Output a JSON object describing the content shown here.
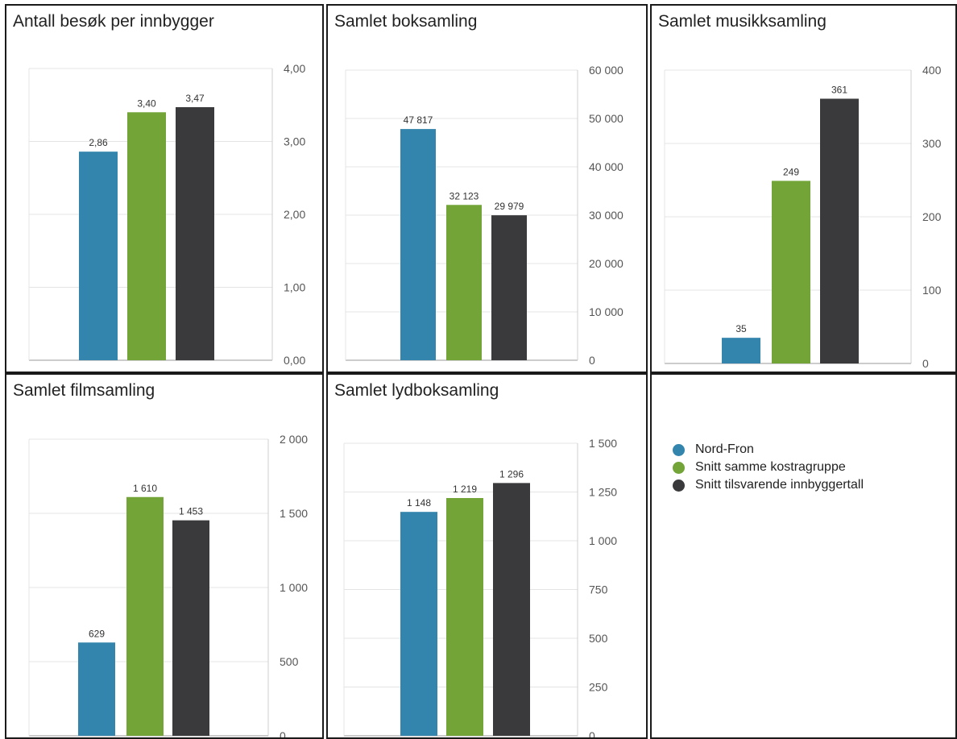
{
  "colors": {
    "nord_fron": "#3385ad",
    "kostragruppe": "#72a438",
    "innbyggertall": "#3a393b"
  },
  "legend": {
    "items": [
      {
        "label": "Nord-Fron",
        "color": "#3385ad",
        "icon": "circle-icon"
      },
      {
        "label": "Snitt samme kostragruppe",
        "color": "#72a438",
        "icon": "circle-icon"
      },
      {
        "label": "Snitt tilsvarende innbyggertall",
        "color": "#3a393b",
        "icon": "circle-icon"
      }
    ]
  },
  "chart_data": [
    {
      "type": "bar",
      "title": "Antall besøk per innbygger",
      "categories": [
        "Nord-Fron",
        "Snitt samme kostragruppe",
        "Snitt tilsvarende innbyggertall"
      ],
      "values": [
        2.86,
        3.4,
        3.47
      ],
      "value_labels": [
        "2,86",
        "3,40",
        "3,47"
      ],
      "ylim": [
        0,
        4
      ],
      "yticks": [
        0,
        1,
        2,
        3,
        4
      ],
      "ytick_labels": [
        "0,00",
        "1,00",
        "2,00",
        "3,00",
        "4,00"
      ],
      "yaxis_side": "right",
      "grid": true
    },
    {
      "type": "bar",
      "title": "Samlet boksamling",
      "categories": [
        "Nord-Fron",
        "Snitt samme kostragruppe",
        "Snitt tilsvarende innbyggertall"
      ],
      "values": [
        47817,
        32123,
        29979
      ],
      "value_labels": [
        "47 817",
        "32 123",
        "29 979"
      ],
      "ylim": [
        0,
        60000
      ],
      "yticks": [
        0,
        10000,
        20000,
        30000,
        40000,
        50000,
        60000
      ],
      "ytick_labels": [
        "0",
        "10 000",
        "20 000",
        "30 000",
        "40 000",
        "50 000",
        "60 000"
      ],
      "yaxis_side": "right",
      "grid": true
    },
    {
      "type": "bar",
      "title": "Samlet musikksamling",
      "categories": [
        "Nord-Fron",
        "Snitt samme kostragruppe",
        "Snitt tilsvarende innbyggertall"
      ],
      "values": [
        35,
        249,
        361
      ],
      "value_labels": [
        "35",
        "249",
        "361"
      ],
      "ylim": [
        0,
        400
      ],
      "yticks": [
        0,
        100,
        200,
        300,
        400
      ],
      "ytick_labels": [
        "0",
        "100",
        "200",
        "300",
        "400"
      ],
      "yaxis_side": "right",
      "grid": true
    },
    {
      "type": "bar",
      "title": "Samlet filmsamling",
      "categories": [
        "Nord-Fron",
        "Snitt samme kostragruppe",
        "Snitt tilsvarende innbyggertall"
      ],
      "values": [
        629,
        1610,
        1453
      ],
      "value_labels": [
        "629",
        "1 610",
        "1 453"
      ],
      "ylim": [
        0,
        2000
      ],
      "yticks": [
        0,
        500,
        1000,
        1500,
        2000
      ],
      "ytick_labels": [
        "0",
        "500",
        "1 000",
        "1 500",
        "2 000"
      ],
      "yaxis_side": "right",
      "grid": true
    },
    {
      "type": "bar",
      "title": "Samlet lydboksamling",
      "categories": [
        "Nord-Fron",
        "Snitt samme kostragruppe",
        "Snitt tilsvarende innbyggertall"
      ],
      "values": [
        1148,
        1219,
        1296
      ],
      "value_labels": [
        "1 148",
        "1 219",
        "1 296"
      ],
      "ylim": [
        0,
        1500
      ],
      "yticks": [
        0,
        250,
        500,
        750,
        1000,
        1250,
        1500
      ],
      "ytick_labels": [
        "0",
        "250",
        "500",
        "750",
        "1 000",
        "1 250",
        "1 500"
      ],
      "yaxis_side": "right",
      "grid": true
    }
  ]
}
